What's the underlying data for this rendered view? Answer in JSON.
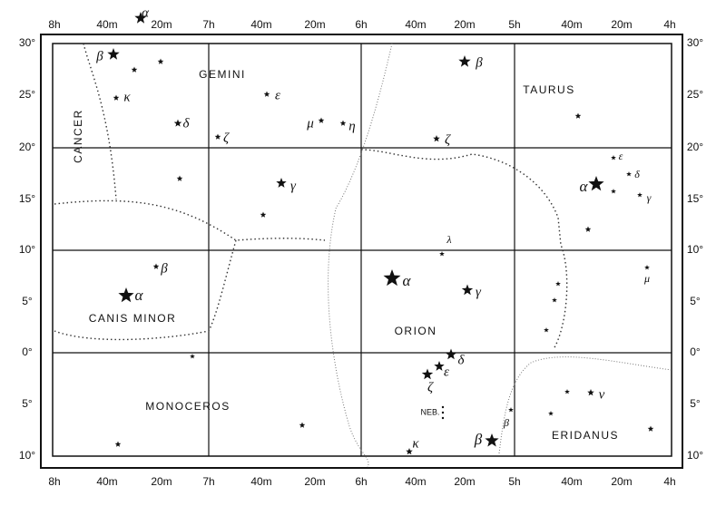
{
  "axes": {
    "top": [
      "8h",
      "40m",
      "20m",
      "7h",
      "40m",
      "20m",
      "6h",
      "40m",
      "20m",
      "5h",
      "40m",
      "20m",
      "4h"
    ],
    "bottom": [
      "8h",
      "40m",
      "20m",
      "7h",
      "40m",
      "20m",
      "6h",
      "40m",
      "20m",
      "5h",
      "40m",
      "20m",
      "4h"
    ],
    "left": [
      "30°",
      "25°",
      "20°",
      "15°",
      "10°",
      "5°",
      "0°",
      "5°",
      "10°"
    ],
    "right": [
      "30°",
      "25°",
      "20°",
      "15°",
      "10°",
      "5°",
      "0°",
      "5°",
      "10°"
    ]
  },
  "constellations": [
    "GEMINI",
    "CANCER",
    "TAURUS",
    "CANIS MINOR",
    "ORION",
    "MONOCEROS",
    "ERIDANUS"
  ],
  "star_labels": [
    "α",
    "β",
    "κ",
    "δ",
    "ζ",
    "ε",
    "μ",
    "η",
    "γ",
    "β",
    "ζ",
    "ε",
    "δ",
    "α",
    "γ",
    "μ",
    "λ",
    "α",
    "γ",
    "β",
    "α",
    "δ",
    "ε",
    "ζ",
    "ν",
    "β",
    "κ",
    "β"
  ],
  "nebula": "NEB."
}
